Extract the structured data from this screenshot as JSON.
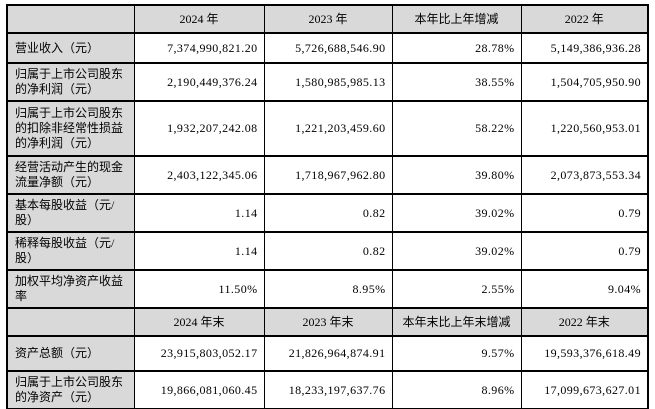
{
  "colors": {
    "header_bg": "#d9d9d9",
    "label_bg": "#d9d9d9",
    "cell_bg": "#ffffff",
    "border": "#000000",
    "text": "#000000"
  },
  "table": {
    "sections": [
      {
        "corner_label": "",
        "columns": [
          "2024 年",
          "2023 年",
          "本年比上年增减",
          "2022 年"
        ],
        "rows": [
          {
            "label": "营业收入（元）",
            "values": [
              "7,374,990,821.20",
              "5,726,688,546.90",
              "28.78%",
              "5,149,386,936.28"
            ]
          },
          {
            "label": "归属于上市公司股东的净利润（元）",
            "values": [
              "2,190,449,376.24",
              "1,580,985,985.13",
              "38.55%",
              "1,504,705,950.90"
            ]
          },
          {
            "label": "归属于上市公司股东的扣除非经常性损益的净利润（元）",
            "values": [
              "1,932,207,242.08",
              "1,221,203,459.60",
              "58.22%",
              "1,220,560,953.01"
            ]
          },
          {
            "label": "经营活动产生的现金流量净额（元）",
            "values": [
              "2,403,122,345.06",
              "1,718,967,962.80",
              "39.80%",
              "2,073,873,553.34"
            ]
          },
          {
            "label": "基本每股收益（元/股）",
            "values": [
              "1.14",
              "0.82",
              "39.02%",
              "0.79"
            ]
          },
          {
            "label": "稀释每股收益（元/股）",
            "values": [
              "1.14",
              "0.82",
              "39.02%",
              "0.79"
            ]
          },
          {
            "label": "加权平均净资产收益率",
            "values": [
              "11.50%",
              "8.95%",
              "2.55%",
              "9.04%"
            ]
          }
        ]
      },
      {
        "corner_label": "",
        "columns": [
          "2024 年末",
          "2023 年末",
          "本年末比上年末增减",
          "2022 年末"
        ],
        "rows": [
          {
            "label": "资产总额（元）",
            "values": [
              "23,915,803,052.17",
              "21,826,964,874.91",
              "9.57%",
              "19,593,376,618.49"
            ]
          },
          {
            "label": "归属于上市公司股东的净资产（元）",
            "values": [
              "19,866,081,060.45",
              "18,233,197,637.76",
              "8.96%",
              "17,099,673,627.01"
            ]
          }
        ]
      }
    ]
  }
}
